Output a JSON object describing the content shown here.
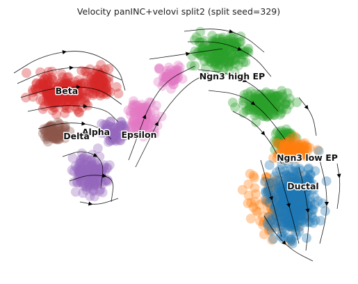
{
  "chart_data": {
    "type": "scatter",
    "title": "Velocity panINC+velovi split2 (split seed=329)",
    "xlabel": "",
    "ylabel": "",
    "axes_visible": false,
    "grid": false,
    "legend": "on data",
    "overlay": "velocity streamlines with arrowheads (black)",
    "clusters": [
      {
        "name": "Beta",
        "color": "#d62728"
      },
      {
        "name": "Alpha",
        "color": "#9467bd"
      },
      {
        "name": "Delta",
        "color": "#8c564b"
      },
      {
        "name": "Epsilon",
        "color": "#e377c2"
      },
      {
        "name": "Ngn3 high EP",
        "color": "#2ca02c"
      },
      {
        "name": "Ngn3 low EP",
        "color": "#ff7f0e"
      },
      {
        "name": "Ductal",
        "color": "#1f77b4"
      }
    ]
  }
}
